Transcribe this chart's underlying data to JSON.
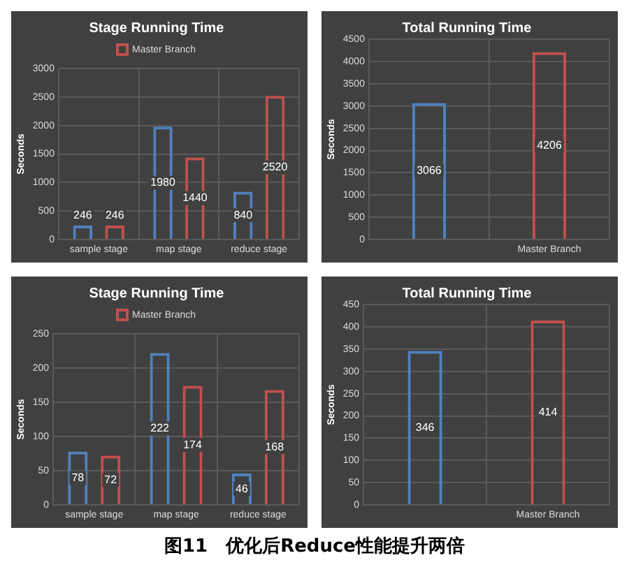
{
  "chart_data": [
    {
      "type": "bar",
      "title": "Stage Running Time",
      "ylabel": "Seconds",
      "categories": [
        "sample stage",
        "map stage",
        "reduce stage"
      ],
      "series": [
        {
          "color": "#4f81bd",
          "values": [
            246,
            1980,
            840
          ]
        },
        {
          "name": "Master Branch",
          "color": "#c0504d",
          "values": [
            246,
            1440,
            2520
          ]
        }
      ],
      "ylim": [
        0,
        3000
      ],
      "yticks": [
        0,
        500,
        1000,
        1500,
        2000,
        2500,
        3000
      ],
      "grid": true,
      "legend": "top",
      "data_labels": true
    },
    {
      "type": "bar",
      "title": "Total Running Time",
      "ylabel": "Seconds",
      "categories": [
        null,
        "Master Branch"
      ],
      "values": [
        3066,
        4206
      ],
      "colors": [
        "#4f81bd",
        "#c0504d"
      ],
      "ylim": [
        0,
        4500
      ],
      "yticks": [
        0,
        500,
        1000,
        1500,
        2000,
        2500,
        3000,
        3500,
        4000,
        4500
      ],
      "grid": true,
      "data_labels": true
    },
    {
      "type": "bar",
      "title": "Stage Running Time",
      "ylabel": "Seconds",
      "categories": [
        "sample stage",
        "map stage",
        "reduce stage"
      ],
      "series": [
        {
          "color": "#4f81bd",
          "values": [
            78,
            222,
            46
          ]
        },
        {
          "name": "Master Branch",
          "color": "#c0504d",
          "values": [
            72,
            174,
            168
          ]
        }
      ],
      "ylim": [
        0,
        250
      ],
      "yticks": [
        0,
        50,
        100,
        150,
        200,
        250
      ],
      "grid": true,
      "legend": "top",
      "data_labels": true
    },
    {
      "type": "bar",
      "title": "Total Running Time",
      "ylabel": "Seconds",
      "categories": [
        null,
        "Master Branch"
      ],
      "values": [
        346,
        414
      ],
      "colors": [
        "#4f81bd",
        "#c0504d"
      ],
      "ylim": [
        0,
        450
      ],
      "yticks": [
        0,
        50,
        100,
        150,
        200,
        250,
        300,
        350,
        400,
        450
      ],
      "grid": true,
      "data_labels": true,
      "annotations": [
        "图11　优化后Reduce性能提升两倍"
      ]
    }
  ]
}
